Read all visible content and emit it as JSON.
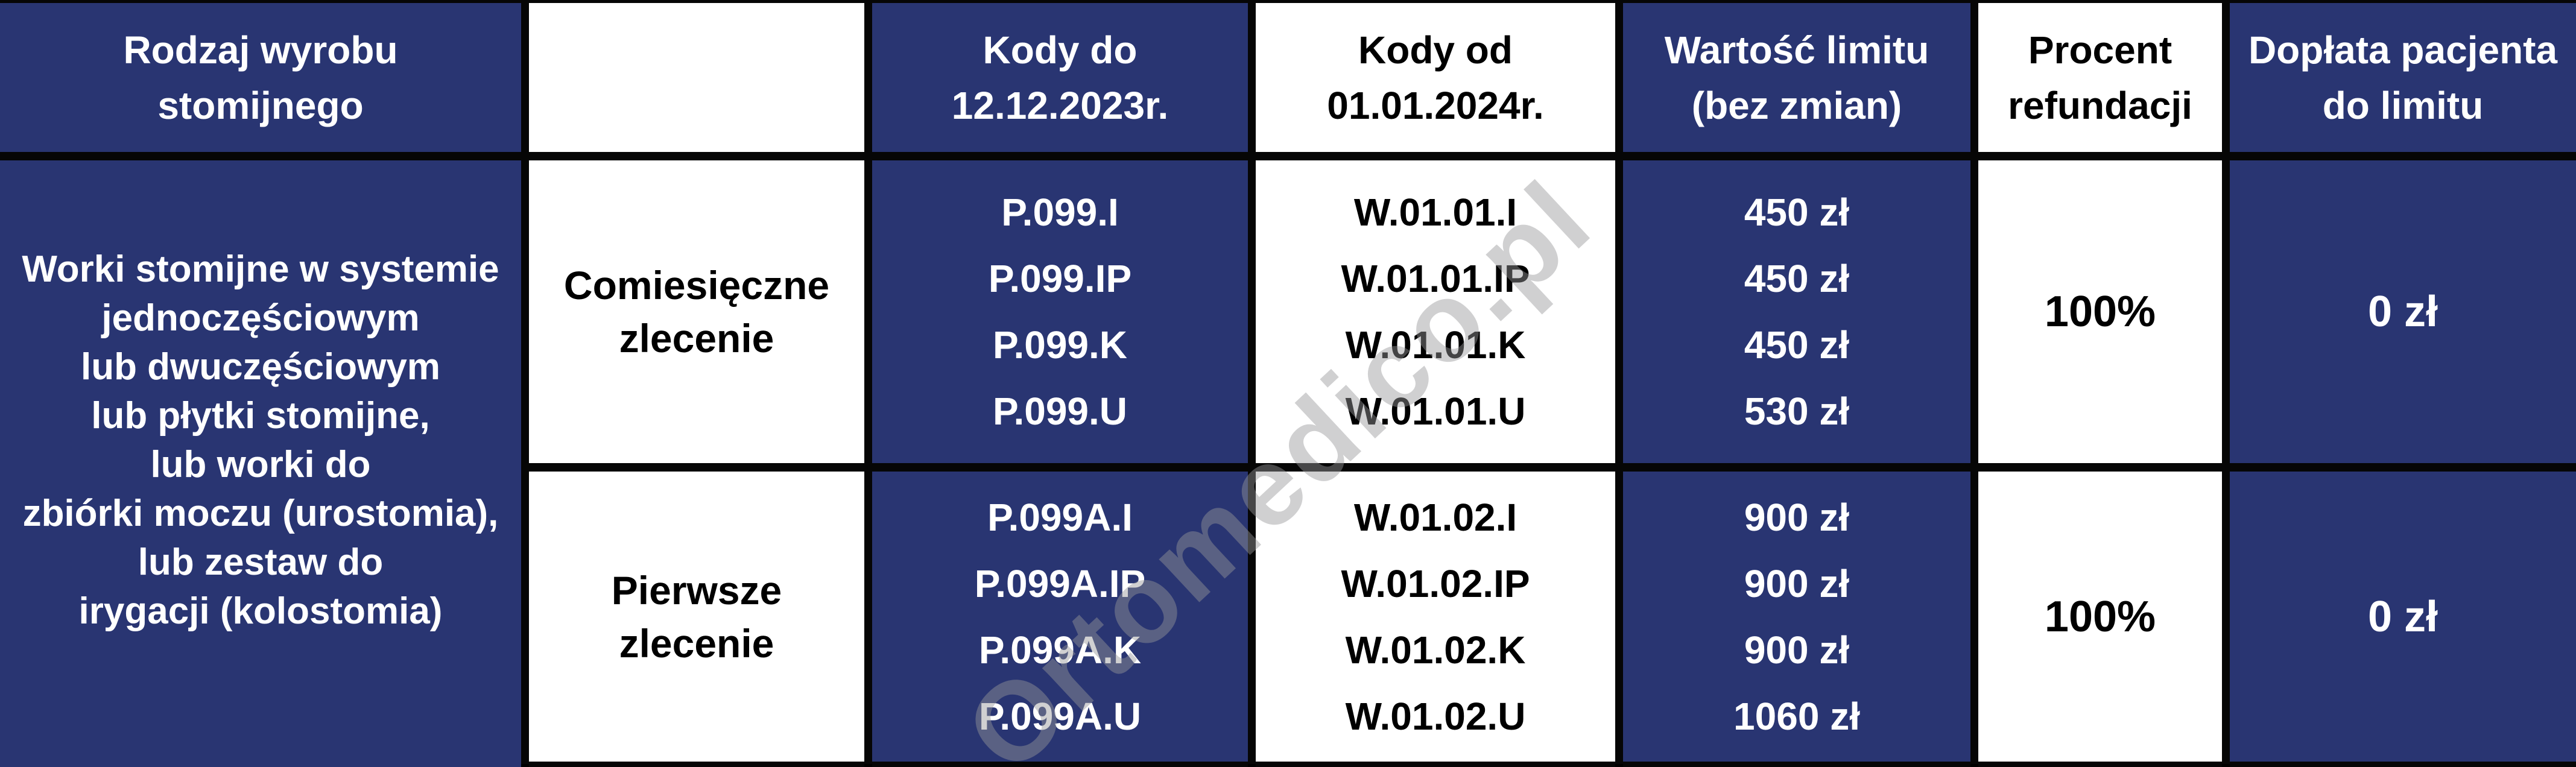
{
  "colors": {
    "navy_cell": "#293572",
    "white_cell": "#ffffff",
    "border": "#060606",
    "watermark": "rgba(150,150,152,0.45)"
  },
  "watermark_text": "Ortomedico.pl",
  "table": {
    "headers": [
      {
        "lines": [
          "Rodzaj wyrobu",
          "stomijnego"
        ]
      },
      {
        "lines": []
      },
      {
        "lines": [
          "Kody do",
          "12.12.2023r."
        ]
      },
      {
        "lines": [
          "Kody od",
          "01.01.2024r."
        ]
      },
      {
        "lines": [
          "Wartość limitu",
          "(bez zmian)"
        ]
      },
      {
        "lines": [
          "Procent",
          "refundacji"
        ]
      },
      {
        "lines": [
          "Dopłata pacjenta",
          "do limitu"
        ]
      }
    ],
    "product_group": {
      "lines": [
        "Worki stomijne w systemie",
        "jednoczęściowym",
        "lub dwuczęściowym",
        "lub płytki stomijne,",
        "lub worki do",
        "zbiórki moczu (urostomia),",
        "lub zestaw do",
        "irygacji (kolostomia)"
      ]
    },
    "rows": [
      {
        "order_type": [
          "Comiesięczne",
          "zlecenie"
        ],
        "codes_old": [
          "P.099.I",
          "P.099.IP",
          "P.099.K",
          "P.099.U"
        ],
        "codes_new": [
          "W.01.01.I",
          "W.01.01.IP",
          "W.01.01.K",
          "W.01.01.U"
        ],
        "limit_values": [
          "450 zł",
          "450 zł",
          "450 zł",
          "530 zł"
        ],
        "refund_percent": "100%",
        "patient_copay": "0 zł"
      },
      {
        "order_type": [
          "Pierwsze",
          "zlecenie"
        ],
        "codes_old": [
          "P.099A.I",
          "P.099A.IP",
          "P.099A.K",
          "P.099A.U"
        ],
        "codes_new": [
          "W.01.02.I",
          "W.01.02.IP",
          "W.01.02.K",
          "W.01.02.U"
        ],
        "limit_values": [
          "900 zł",
          "900 zł",
          "900 zł",
          "1060 zł"
        ],
        "refund_percent": "100%",
        "patient_copay": "0 zł"
      }
    ]
  }
}
